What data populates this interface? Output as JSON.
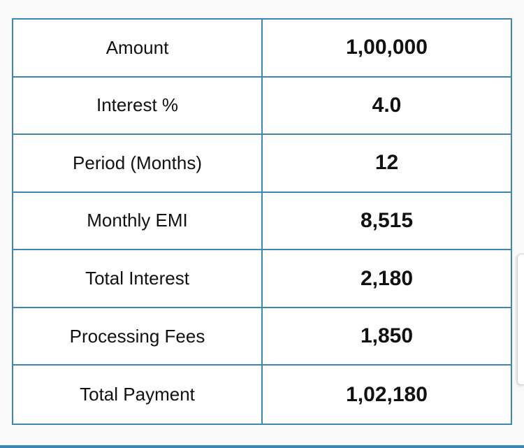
{
  "rows": [
    {
      "label": "Amount",
      "value": "1,00,000"
    },
    {
      "label": "Interest %",
      "value": "4.0"
    },
    {
      "label": "Period (Months)",
      "value": "12"
    },
    {
      "label": "Monthly EMI",
      "value": "8,515"
    },
    {
      "label": "Total Interest",
      "value": "2,180"
    },
    {
      "label": "Processing Fees",
      "value": "1,850"
    },
    {
      "label": "Total Payment",
      "value": "1,02,180"
    }
  ],
  "colors": {
    "border": "#3e86b3",
    "text": "#111111",
    "background": "#ffffff"
  }
}
